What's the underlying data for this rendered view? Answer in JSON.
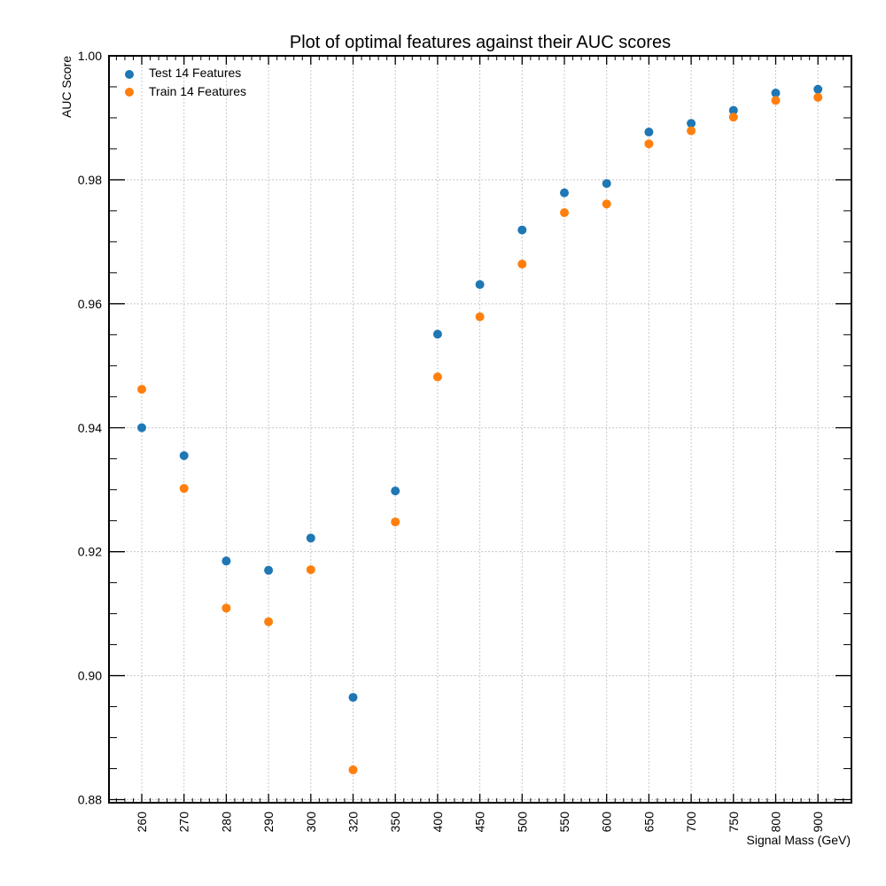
{
  "chart_data": {
    "type": "scatter",
    "title": "Plot of optimal features against their AUC scores",
    "xlabel": "Signal Mass (GeV)",
    "ylabel": "AUC Score",
    "categories": [
      "260",
      "270",
      "280",
      "290",
      "300",
      "320",
      "350",
      "400",
      "450",
      "500",
      "550",
      "600",
      "650",
      "700",
      "750",
      "800",
      "900"
    ],
    "ylim": [
      0.8795,
      1.0
    ],
    "yticks": [
      0.88,
      0.9,
      0.92,
      0.94,
      0.96,
      0.98,
      1.0
    ],
    "ytick_labels": [
      "0.88",
      "0.90",
      "0.92",
      "0.94",
      "0.96",
      "0.98",
      "1.00"
    ],
    "grid": true,
    "legend_position": "top-left",
    "series": [
      {
        "name": "Test 14 Features",
        "color": "#1f77b4",
        "values": [
          0.94,
          0.9355,
          0.9185,
          0.917,
          0.9222,
          0.8965,
          0.9298,
          0.9551,
          0.9631,
          0.9719,
          0.9779,
          0.9794,
          0.9877,
          0.9891,
          0.9912,
          0.994,
          0.9946
        ]
      },
      {
        "name": "Train 14 Features",
        "color": "#ff7f0e",
        "values": [
          0.9462,
          0.9302,
          0.9109,
          0.9087,
          0.9171,
          0.8848,
          0.9248,
          0.9482,
          0.9579,
          0.9664,
          0.9747,
          0.9761,
          0.9858,
          0.9879,
          0.9901,
          0.9928,
          0.9933
        ]
      }
    ]
  }
}
